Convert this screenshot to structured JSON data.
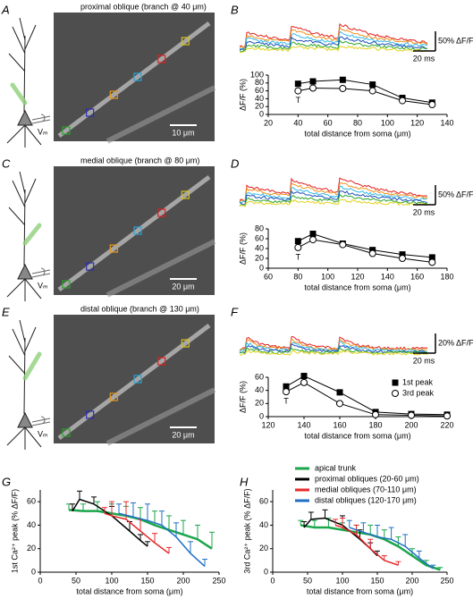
{
  "panel_labels": [
    "A",
    "B",
    "C",
    "D",
    "E",
    "F",
    "G",
    "H"
  ],
  "images": [
    {
      "title": "proximal oblique (branch @ 40 μm)",
      "scale_bar": "10 μm",
      "cell_label": "Vₘ"
    },
    {
      "title": "medial oblique (branch @ 80 μm)",
      "scale_bar": "20 μm",
      "cell_label": "Vₘ"
    },
    {
      "title": "distal oblique (branch @ 130 μm)",
      "scale_bar": "20 μm",
      "cell_label": "Vₘ"
    }
  ],
  "chart_data": [
    {
      "type": "line",
      "trace_scale": [
        "50% ΔF/F",
        "20 ms"
      ],
      "ylabel": "ΔF/F (%)",
      "xlabel": "total distance from soma (μm)",
      "x": [
        40,
        50,
        70,
        90,
        110,
        130
      ],
      "series": [
        {
          "name": "1st peak",
          "marker": "square",
          "color": "#000000",
          "values": [
            78,
            84,
            88,
            76,
            42,
            30
          ]
        },
        {
          "name": "3rd peak",
          "marker": "circle",
          "color": "#000000",
          "values": [
            60,
            67,
            66,
            60,
            35,
            25
          ]
        }
      ],
      "annotation": "T",
      "xlim": [
        20,
        140
      ],
      "xticks": [
        20,
        40,
        60,
        80,
        100,
        120,
        140
      ],
      "ylim": [
        0,
        100
      ],
      "yticks": [
        0,
        20,
        40,
        60,
        80,
        100
      ],
      "legend": false
    },
    {
      "type": "line",
      "trace_scale": [
        "50% ΔF/F",
        "20 ms"
      ],
      "ylabel": "ΔF/F (%)",
      "xlabel": "total distance from soma (μm)",
      "x": [
        80,
        90,
        110,
        130,
        150,
        170
      ],
      "series": [
        {
          "name": "1st peak",
          "marker": "square",
          "color": "#000000",
          "values": [
            55,
            70,
            50,
            37,
            28,
            22
          ]
        },
        {
          "name": "3rd peak",
          "marker": "circle",
          "color": "#000000",
          "values": [
            42,
            58,
            48,
            30,
            20,
            12
          ]
        }
      ],
      "annotation": "T",
      "xlim": [
        60,
        180
      ],
      "xticks": [
        60,
        80,
        100,
        120,
        140,
        160,
        180
      ],
      "ylim": [
        0,
        80
      ],
      "yticks": [
        0,
        20,
        40,
        60,
        80
      ],
      "legend": false
    },
    {
      "type": "line",
      "trace_scale": [
        "20% ΔF/F",
        "20 ms"
      ],
      "ylabel": "ΔF/F (%)",
      "xlabel": "total distance from soma (μm)",
      "x": [
        130,
        140,
        160,
        180,
        200,
        220
      ],
      "series": [
        {
          "name": "1st peak",
          "marker": "square",
          "color": "#000000",
          "values": [
            46,
            62,
            37,
            7,
            4,
            3
          ]
        },
        {
          "name": "3rd peak",
          "marker": "circle",
          "color": "#000000",
          "values": [
            38,
            52,
            20,
            3,
            2,
            1
          ]
        }
      ],
      "annotation": "T",
      "xlim": [
        120,
        220
      ],
      "xticks": [
        120,
        140,
        160,
        180,
        200,
        220
      ],
      "ylim": [
        0,
        60
      ],
      "yticks": [
        0,
        20,
        40,
        60
      ],
      "legend": "upper right"
    },
    {
      "type": "errorbar",
      "ylabel": "1st Ca²⁺ peak (% ΔF/F)",
      "xlabel": "total distance from soma (μm)",
      "series": [
        {
          "name": "apical trunk",
          "color": "#1aa64a",
          "x": [
            40,
            60,
            80,
            100,
            120,
            140,
            160,
            180,
            200,
            220,
            240
          ],
          "values": [
            53,
            52,
            52,
            50,
            48,
            45,
            40,
            36,
            32,
            28,
            20
          ],
          "errors": [
            5,
            6,
            8,
            8,
            8,
            10,
            12,
            12,
            12,
            12,
            14
          ]
        },
        {
          "name": "proximal obliques (20-60 μm)",
          "color": "#000000",
          "x": [
            45,
            55,
            75,
            100,
            125,
            140,
            150
          ],
          "values": [
            52,
            62,
            58,
            48,
            35,
            27,
            22
          ],
          "errors": [
            6,
            7,
            6,
            8,
            8,
            5,
            4
          ]
        },
        {
          "name": "medial obliques (70-110 μm)",
          "color": "#e8292b",
          "x": [
            90,
            100,
            120,
            140,
            160,
            180
          ],
          "values": [
            50,
            48,
            45,
            35,
            25,
            16
          ],
          "errors": [
            5,
            12,
            15,
            10,
            8,
            5
          ]
        },
        {
          "name": "distal obliques (120-170 μm)",
          "color": "#1f6fc6",
          "x": [
            110,
            130,
            150,
            170,
            190,
            210,
            230
          ],
          "values": [
            50,
            47,
            44,
            40,
            30,
            16,
            5
          ],
          "errors": [
            8,
            12,
            14,
            12,
            12,
            10,
            6
          ]
        }
      ],
      "xlim": [
        0,
        250
      ],
      "xticks": [
        0,
        50,
        100,
        150,
        200,
        250
      ],
      "ylim": [
        0,
        70
      ],
      "yticks": [
        0,
        20,
        40,
        60
      ],
      "legend": false
    },
    {
      "type": "errorbar",
      "ylabel": "3rd Ca²⁺ peak (% ΔF/F)",
      "xlabel": "total distance from soma (μm)",
      "series": [
        {
          "name": "apical trunk",
          "color": "#1aa64a",
          "x": [
            40,
            60,
            80,
            100,
            120,
            140,
            160,
            180,
            200,
            220,
            240
          ],
          "values": [
            40,
            38,
            38,
            36,
            34,
            32,
            28,
            22,
            14,
            6,
            2
          ],
          "errors": [
            4,
            6,
            8,
            6,
            6,
            8,
            8,
            8,
            6,
            4,
            2
          ]
        },
        {
          "name": "proximal obliques (20-60 μm)",
          "color": "#000000",
          "x": [
            45,
            55,
            75,
            100,
            125,
            140,
            150
          ],
          "values": [
            38,
            45,
            46,
            40,
            28,
            20,
            14
          ],
          "errors": [
            5,
            6,
            7,
            8,
            8,
            5,
            4
          ]
        },
        {
          "name": "medial obliques (70-110 μm)",
          "color": "#e8292b",
          "x": [
            90,
            100,
            120,
            140,
            160,
            180
          ],
          "values": [
            40,
            38,
            32,
            20,
            10,
            6
          ],
          "errors": [
            5,
            8,
            8,
            8,
            4,
            3
          ]
        },
        {
          "name": "distal obliques (120-170 μm)",
          "color": "#1f6fc6",
          "x": [
            110,
            130,
            150,
            170,
            190,
            210,
            230
          ],
          "values": [
            38,
            34,
            30,
            28,
            22,
            12,
            3
          ],
          "errors": [
            6,
            8,
            10,
            10,
            10,
            6,
            3
          ]
        }
      ],
      "xlim": [
        0,
        250
      ],
      "xticks": [
        0,
        50,
        100,
        150,
        200,
        250
      ],
      "ylim": [
        0,
        70
      ],
      "yticks": [
        0,
        20,
        40,
        60
      ],
      "legend": "upper right"
    }
  ]
}
